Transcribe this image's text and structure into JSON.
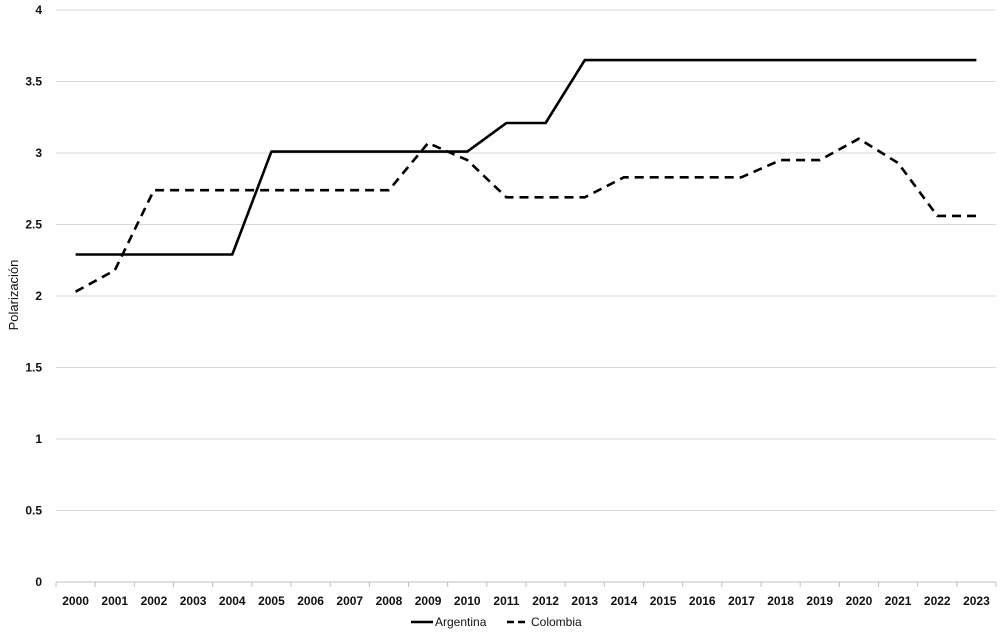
{
  "chart_data": {
    "type": "line",
    "title": "",
    "xlabel": "",
    "ylabel": "Polarización",
    "ylim": [
      0,
      4
    ],
    "yticks": [
      "0",
      "0.5",
      "1",
      "1.5",
      "2",
      "2.5",
      "3",
      "3.5",
      "4"
    ],
    "grid": "horizontal",
    "legend_position": "bottom",
    "categories": [
      "2000",
      "2001",
      "2002",
      "2003",
      "2004",
      "2005",
      "2006",
      "2007",
      "2008",
      "2009",
      "2010",
      "2011",
      "2012",
      "2013",
      "2014",
      "2015",
      "2016",
      "2017",
      "2018",
      "2019",
      "2020",
      "2021",
      "2022",
      "2023"
    ],
    "series": [
      {
        "name": "Argentina",
        "style": "solid",
        "color": "#000000",
        "values": [
          2.29,
          2.29,
          2.29,
          2.29,
          2.29,
          3.01,
          3.01,
          3.01,
          3.01,
          3.01,
          3.01,
          3.21,
          3.21,
          3.65,
          3.65,
          3.65,
          3.65,
          3.65,
          3.65,
          3.65,
          3.65,
          3.65,
          3.65,
          3.65
        ]
      },
      {
        "name": "Colombia",
        "style": "dashed",
        "color": "#000000",
        "values": [
          2.03,
          2.18,
          2.74,
          2.74,
          2.74,
          2.74,
          2.74,
          2.74,
          2.74,
          3.07,
          2.95,
          2.69,
          2.69,
          2.69,
          2.83,
          2.83,
          2.83,
          2.83,
          2.95,
          2.95,
          3.1,
          2.93,
          2.56,
          2.56
        ]
      }
    ]
  }
}
